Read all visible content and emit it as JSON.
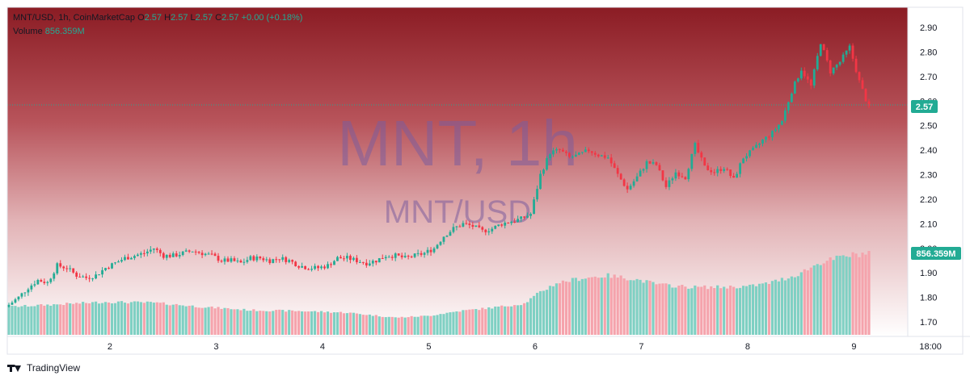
{
  "legend": {
    "symbol": "MNT/USD, 1h, CoinMarketCap",
    "o_label": "O",
    "o": "2.57",
    "h_label": "H",
    "h": "2.57",
    "l_label": "L",
    "l": "2.57",
    "c_label": "C",
    "c": "2.57",
    "change": "+0.00 (+0.18%)",
    "volume_label": "Volume",
    "volume_value": "856.359M"
  },
  "watermark": {
    "main": "MNT, 1h",
    "sub": "MNT/USD"
  },
  "branding": {
    "name": "TradingView"
  },
  "colors": {
    "up": "#22ab94",
    "down": "#f23645",
    "up_volume": "#7fd0c3",
    "down_volume": "#f5a3ac",
    "bg_top": "#8b1c24"
  },
  "chart_data": {
    "type": "candlestick",
    "symbol": "MNT/USD",
    "interval": "1h",
    "ylim": [
      1.65,
      2.95
    ],
    "yticks": [
      "2.90",
      "2.80",
      "2.70",
      "2.60",
      "2.50",
      "2.40",
      "2.30",
      "2.20",
      "2.10",
      "2.00",
      "1.90",
      "1.80",
      "1.70"
    ],
    "xticks": [
      {
        "label": "2",
        "pos": 0.115
      },
      {
        "label": "3",
        "pos": 0.24
      },
      {
        "label": "4",
        "pos": 0.365
      },
      {
        "label": "5",
        "pos": 0.49
      },
      {
        "label": "6",
        "pos": 0.615
      },
      {
        "label": "7",
        "pos": 0.74
      },
      {
        "label": "8",
        "pos": 0.865
      },
      {
        "label": "9",
        "pos": 0.99
      },
      {
        "label": "18:00",
        "pos": 1.08
      }
    ],
    "last_price": "2.57",
    "last_volume": "856.359M",
    "close_path": [
      [
        0,
        1.77
      ],
      [
        3,
        1.8
      ],
      [
        6,
        1.84
      ],
      [
        9,
        1.87
      ],
      [
        12,
        1.86
      ],
      [
        15,
        1.93
      ],
      [
        18,
        1.92
      ],
      [
        21,
        1.89
      ],
      [
        24,
        1.88
      ],
      [
        27,
        1.89
      ],
      [
        30,
        1.92
      ],
      [
        33,
        1.94
      ],
      [
        36,
        1.96
      ],
      [
        39,
        1.97
      ],
      [
        42,
        1.98
      ],
      [
        45,
        2.0
      ],
      [
        48,
        1.97
      ],
      [
        51,
        1.97
      ],
      [
        54,
        1.98
      ],
      [
        57,
        1.99
      ],
      [
        60,
        1.98
      ],
      [
        63,
        1.97
      ],
      [
        66,
        1.95
      ],
      [
        69,
        1.95
      ],
      [
        72,
        1.94
      ],
      [
        75,
        1.96
      ],
      [
        78,
        1.96
      ],
      [
        81,
        1.95
      ],
      [
        84,
        1.96
      ],
      [
        87,
        1.95
      ],
      [
        90,
        1.93
      ],
      [
        93,
        1.92
      ],
      [
        96,
        1.92
      ],
      [
        99,
        1.93
      ],
      [
        102,
        1.96
      ],
      [
        105,
        1.96
      ],
      [
        108,
        1.95
      ],
      [
        111,
        1.94
      ],
      [
        114,
        1.95
      ],
      [
        117,
        1.97
      ],
      [
        120,
        1.97
      ],
      [
        123,
        1.96
      ],
      [
        126,
        1.97
      ],
      [
        129,
        1.98
      ],
      [
        132,
        2.0
      ],
      [
        135,
        2.05
      ],
      [
        138,
        2.08
      ],
      [
        141,
        2.1
      ],
      [
        144,
        2.09
      ],
      [
        147,
        2.07
      ],
      [
        150,
        2.08
      ],
      [
        153,
        2.1
      ],
      [
        156,
        2.11
      ],
      [
        159,
        2.12
      ],
      [
        162,
        2.14
      ],
      [
        165,
        2.3
      ],
      [
        168,
        2.39
      ],
      [
        171,
        2.4
      ],
      [
        174,
        2.37
      ],
      [
        177,
        2.38
      ],
      [
        180,
        2.4
      ],
      [
        183,
        2.38
      ],
      [
        186,
        2.37
      ],
      [
        189,
        2.3
      ],
      [
        192,
        2.24
      ],
      [
        195,
        2.29
      ],
      [
        198,
        2.35
      ],
      [
        201,
        2.34
      ],
      [
        204,
        2.25
      ],
      [
        207,
        2.31
      ],
      [
        210,
        2.29
      ],
      [
        213,
        2.42
      ],
      [
        216,
        2.33
      ],
      [
        219,
        2.31
      ],
      [
        222,
        2.33
      ],
      [
        225,
        2.28
      ],
      [
        228,
        2.37
      ],
      [
        231,
        2.4
      ],
      [
        234,
        2.44
      ],
      [
        237,
        2.47
      ],
      [
        240,
        2.52
      ],
      [
        243,
        2.64
      ],
      [
        246,
        2.73
      ],
      [
        249,
        2.66
      ],
      [
        252,
        2.84
      ],
      [
        255,
        2.72
      ],
      [
        258,
        2.76
      ],
      [
        261,
        2.82
      ],
      [
        264,
        2.68
      ],
      [
        267,
        2.57
      ]
    ],
    "volume_path": [
      [
        0,
        0.34
      ],
      [
        15,
        0.37
      ],
      [
        30,
        0.4
      ],
      [
        45,
        0.39
      ],
      [
        60,
        0.34
      ],
      [
        75,
        0.3
      ],
      [
        90,
        0.29
      ],
      [
        105,
        0.27
      ],
      [
        120,
        0.21
      ],
      [
        130,
        0.23
      ],
      [
        140,
        0.29
      ],
      [
        150,
        0.33
      ],
      [
        160,
        0.38
      ],
      [
        165,
        0.52
      ],
      [
        170,
        0.63
      ],
      [
        178,
        0.69
      ],
      [
        186,
        0.72
      ],
      [
        194,
        0.68
      ],
      [
        202,
        0.61
      ],
      [
        212,
        0.58
      ],
      [
        220,
        0.58
      ],
      [
        230,
        0.59
      ],
      [
        236,
        0.63
      ],
      [
        244,
        0.72
      ],
      [
        252,
        0.88
      ],
      [
        260,
        0.96
      ],
      [
        267,
        1.0
      ]
    ],
    "candle_count": 268
  }
}
